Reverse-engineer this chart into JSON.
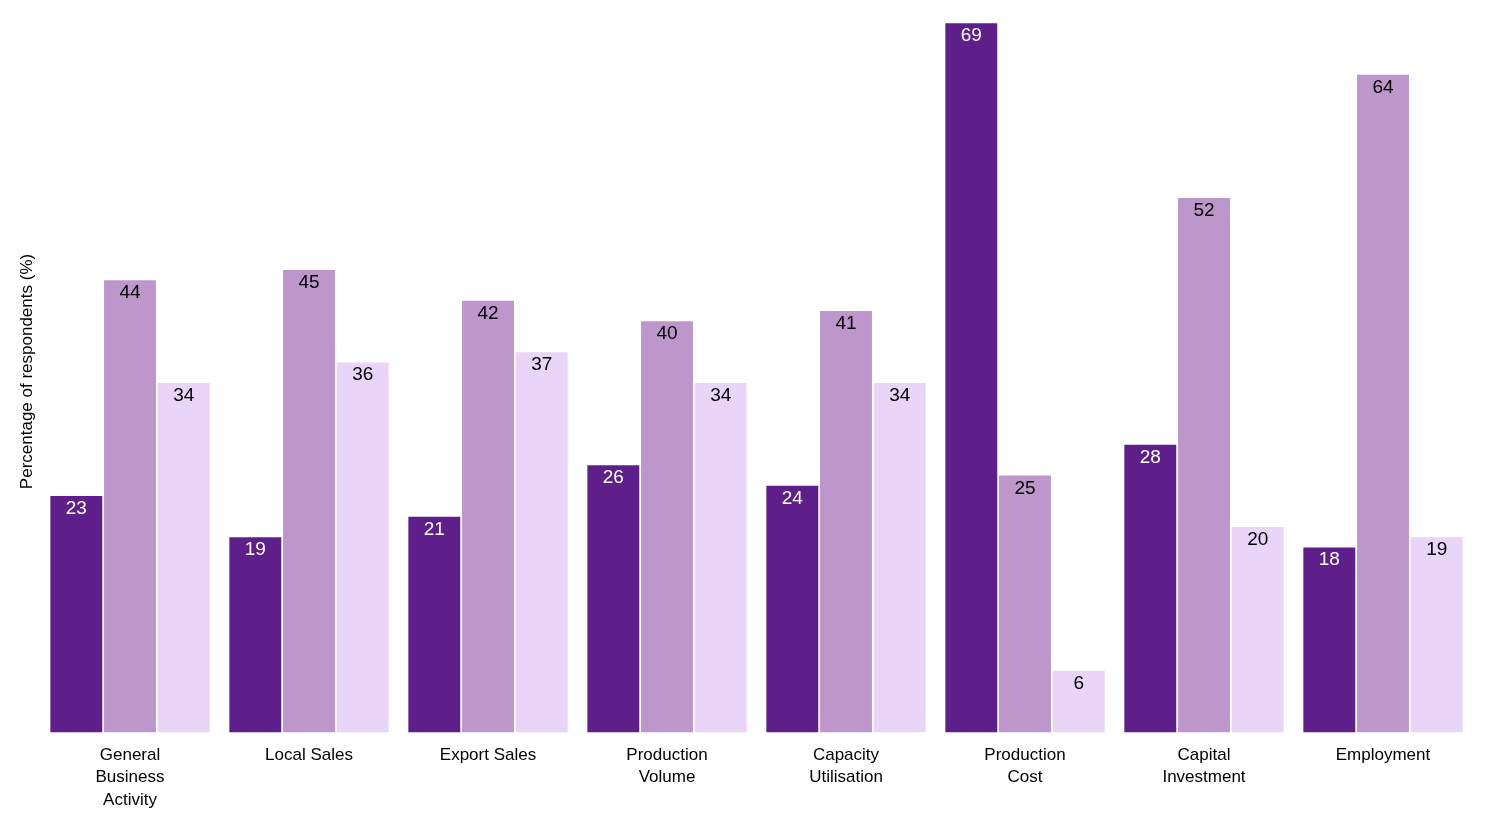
{
  "chart_data": {
    "type": "bar",
    "ylabel": "Percentage of respondents (%)",
    "categories": [
      "General Business Activity",
      "Local Sales",
      "Export Sales",
      "Production Volume",
      "Capacity Utilisation",
      "Production Cost",
      "Capital Investment",
      "Employment"
    ],
    "series": [
      {
        "color": "#5e1f8a",
        "values": [
          23,
          19,
          21,
          26,
          24,
          69,
          28,
          18
        ]
      },
      {
        "color": "#bd97cb",
        "values": [
          44,
          45,
          42,
          40,
          41,
          25,
          52,
          64
        ]
      },
      {
        "color": "#e8d5f7",
        "values": [
          34,
          36,
          37,
          34,
          34,
          6,
          20,
          19
        ]
      }
    ],
    "data_labels": true
  }
}
